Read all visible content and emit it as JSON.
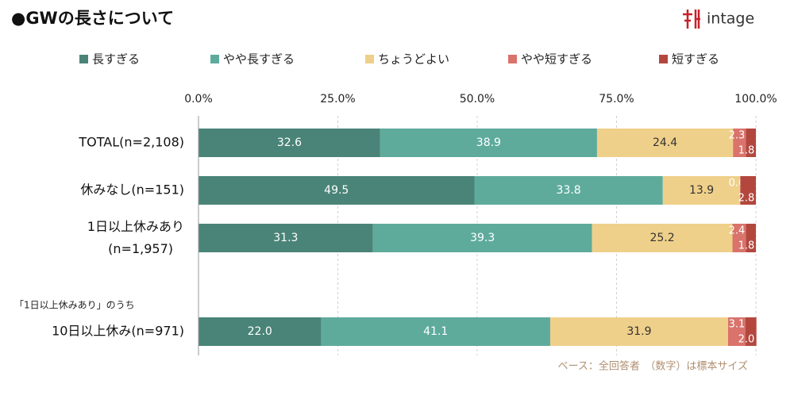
{
  "chart_data": {
    "type": "stacked-bar-horizontal",
    "title": "●GWの長さについて",
    "logo": "intage",
    "subgroup_note": "「1日以上休みあり」のうち",
    "footnote": "ベース：全回答者　（数字）は標本サイズ",
    "categories": [
      "TOTAL(n=2,108)",
      "休みなし(n=151)",
      "1日以上休みあり(n=1,957)",
      "10日以上休み(n=971)"
    ],
    "xlim": [
      0,
      100
    ],
    "xticks": [
      {
        "value": 0,
        "label": "0.0%"
      },
      {
        "value": 25,
        "label": "25.0%"
      },
      {
        "value": 50,
        "label": "50.0%"
      },
      {
        "value": 75,
        "label": "75.0%"
      },
      {
        "value": 100,
        "label": "100.0%"
      }
    ],
    "grid": true,
    "series": [
      {
        "name": "長すぎる",
        "color": "#4a8478",
        "values": [
          32.6,
          49.5,
          31.3,
          22.0
        ],
        "value_labels": [
          "32.6",
          "49.5",
          "31.3",
          "22.0"
        ]
      },
      {
        "name": "やや長すぎる",
        "color": "#5eab9c",
        "values": [
          38.9,
          33.8,
          39.3,
          41.1
        ],
        "value_labels": [
          "38.9",
          "33.8",
          "39.3",
          "41.1"
        ]
      },
      {
        "name": "ちょうどよい",
        "color": "#efd08a",
        "values": [
          24.4,
          13.9,
          25.2,
          31.9
        ],
        "value_labels": [
          "24.4",
          "13.9",
          "25.2",
          "31.9"
        ]
      },
      {
        "name": "やや短すぎる",
        "color": "#d9736b",
        "values": [
          2.3,
          0.0,
          2.4,
          3.1
        ],
        "value_labels": [
          "2.3",
          "0.0",
          "2.4",
          "3.1"
        ]
      },
      {
        "name": "短すぎる",
        "color": "#b3473e",
        "values": [
          1.8,
          2.8,
          1.8,
          2.0
        ],
        "value_labels": [
          "1.8",
          "2.8",
          "1.8",
          "2.0"
        ]
      }
    ]
  }
}
